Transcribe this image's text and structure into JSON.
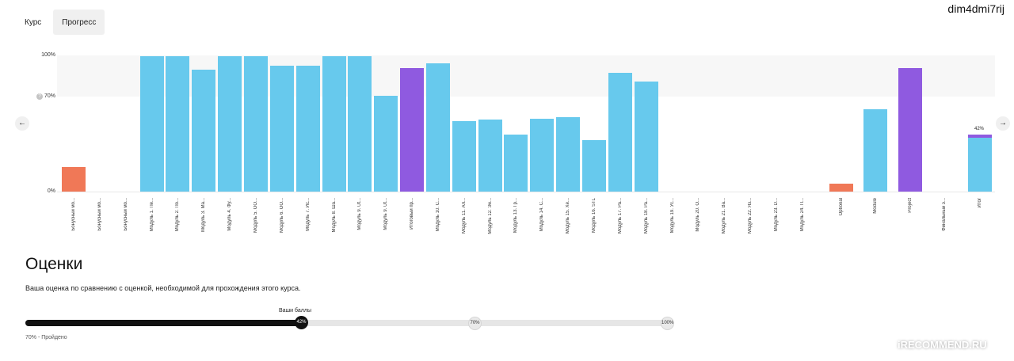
{
  "tabs": [
    {
      "label": "Курс",
      "active": false
    },
    {
      "label": "Прогресс",
      "active": true
    }
  ],
  "user": "dim4dmi7rij",
  "chart_data": {
    "type": "bar",
    "ylim": [
      0,
      100
    ],
    "y_ticks": [
      {
        "value": 0,
        "label": "0%"
      },
      {
        "value": 70,
        "label": "70%"
      },
      {
        "value": 100,
        "label": "100%"
      }
    ],
    "pass_band": [
      70,
      100
    ],
    "categories": [
      "Бонусный мо...",
      "Бонусный мо...",
      "Бонусный мо...",
      "Модуль 1. Пе...",
      "Модуль 2. По...",
      "Модуль 3. Ма...",
      "Модуль 4. Фу...",
      "Модуль 5. ОО...",
      "Модуль 6. ОО...",
      "Модуль 7. Ис...",
      "Модуль 8. Ша...",
      "Модуль 9. Ut...",
      "Модуль 9. Ut...",
      "Итоговый пр...",
      "Модуль 10. С...",
      "Модуль 11. Ал...",
      "Модуль 12. Эн...",
      "Модуль 13. Гр...",
      "Модуль 14. С...",
      "Модуль 15. Хе...",
      "Модуль 16. STL",
      "Модуль 17. Ра...",
      "Модуль 18. Ра...",
      "Модуль 19. Ус...",
      "Модуль 20. О...",
      "Модуль 21. Ва...",
      "Модуль 22. Яз...",
      "Модуль 23. D...",
      "Модуль 24. П...",
      "Optional",
      "Module",
      "Project",
      "Финальный э...",
      "Итог"
    ],
    "values": [
      18,
      0,
      0,
      100,
      100,
      90,
      100,
      100,
      93,
      93,
      100,
      100,
      71,
      91,
      95,
      52,
      53,
      42,
      54,
      55,
      38,
      88,
      81,
      0,
      0,
      0,
      0,
      0,
      0,
      6,
      61,
      91,
      0,
      42
    ],
    "colors": [
      "#f07857",
      "#67c9ed",
      "#67c9ed",
      "#67c9ed",
      "#67c9ed",
      "#67c9ed",
      "#67c9ed",
      "#67c9ed",
      "#67c9ed",
      "#67c9ed",
      "#67c9ed",
      "#67c9ed",
      "#67c9ed",
      "#8f5ae0",
      "#67c9ed",
      "#67c9ed",
      "#67c9ed",
      "#67c9ed",
      "#67c9ed",
      "#67c9ed",
      "#67c9ed",
      "#67c9ed",
      "#67c9ed",
      "#67c9ed",
      "#67c9ed",
      "#67c9ed",
      "#67c9ed",
      "#67c9ed",
      "#67c9ed",
      "#f07857",
      "#67c9ed",
      "#8f5ae0",
      "#67c9ed",
      "#67c9ed"
    ],
    "total_label": "42%"
  },
  "grades": {
    "title": "Оценки",
    "description": "Ваша оценка по сравнению с оценкой, необходимой для прохождения этого курса.",
    "score_caption": "Ваши баллы",
    "score": 42,
    "score_label": "42%",
    "pass_label": "70%",
    "max_label": "100%",
    "pass_note": "70% - Пройдено"
  },
  "watermark": "iRECOMMEND.RU",
  "accent": {
    "blue": "#67c9ed",
    "purple": "#8f5ae0",
    "orange": "#f07857",
    "dark": "#111111"
  }
}
